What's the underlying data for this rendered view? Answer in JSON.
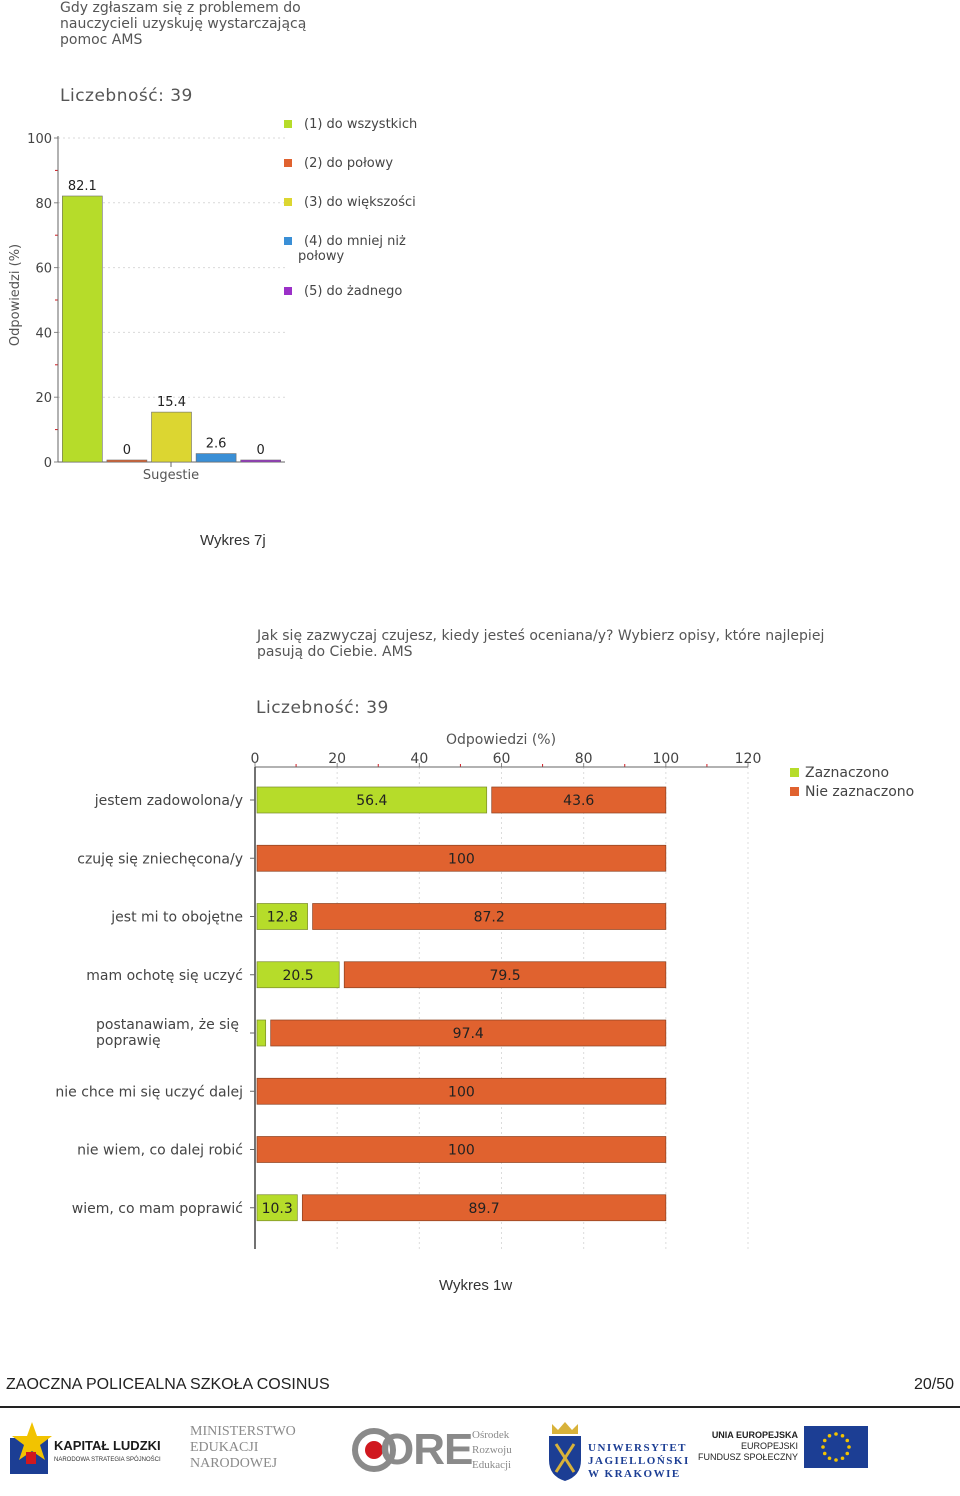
{
  "chart_data": [
    {
      "type": "bar",
      "title": "Gdy zgłaszam się z problemem do\nnauczycieli uzyskuję wystarczającą\npomoc AMS",
      "count_label": "Liczebność: 39",
      "xlabel": "Sugestie",
      "ylabel": "Odpowiedzi (%)",
      "ylim": [
        0,
        100
      ],
      "yticks": [
        "0",
        "20",
        "40",
        "60",
        "80",
        "100"
      ],
      "legend_position": "right",
      "series": [
        {
          "name": "(1) do wszystkich",
          "value": 82.1,
          "label": "82.1",
          "color": "#b6dc2a"
        },
        {
          "name": "(2) do połowy",
          "value": 0,
          "label": "0",
          "color": "#e0622f"
        },
        {
          "name": "(3) do większości",
          "value": 15.4,
          "label": "15.4",
          "color": "#dcd631"
        },
        {
          "name": "(4) do mniej niż połowy",
          "value": 2.6,
          "label": "2.6",
          "color": "#3a8fd6"
        },
        {
          "name": "(5) do żadnego",
          "value": 0,
          "label": "0",
          "color": "#9b30c8"
        }
      ],
      "caption": "Wykres 7j"
    },
    {
      "type": "bar",
      "orientation": "horizontal-stacked",
      "title": "Jak się zazwyczaj czujesz, kiedy jesteś oceniana/y? Wybierz opisy, które najlepiej\npasują do Ciebie. AMS",
      "count_label": "Liczebność: 39",
      "xlabel": "Odpowiedzi (%)",
      "xlim": [
        0,
        120
      ],
      "xticks": [
        "0",
        "20",
        "40",
        "60",
        "80",
        "100",
        "120"
      ],
      "legend_position": "top-right",
      "categories": [
        "jestem zadowolona/y",
        "czuję się zniechęcona/y",
        "jest mi to obojętne",
        "mam ochotę się uczyć",
        "postanawiam, że się\npoprawię",
        "nie chce mi się uczyć dalej",
        "nie wiem, co dalej robić",
        "wiem, co mam poprawić"
      ],
      "series": [
        {
          "name": "Zaznaczono",
          "color": "#b6dc2a",
          "values": [
            56.4,
            0,
            12.8,
            20.5,
            2.6,
            0,
            0,
            10.3
          ],
          "labels": [
            "56.4",
            "",
            "12.8",
            "20.5",
            "",
            "",
            "",
            "10.3"
          ]
        },
        {
          "name": "Nie zaznaczono",
          "color": "#e0622f",
          "values": [
            43.6,
            100,
            87.2,
            79.5,
            97.4,
            100,
            100,
            89.7
          ],
          "labels": [
            "43.6",
            "100",
            "87.2",
            "79.5",
            "97.4",
            "100",
            "100",
            "89.7"
          ]
        }
      ],
      "caption": "Wykres 1w"
    }
  ],
  "footer": {
    "school": "ZAOCZNA POLICEALNA SZKOŁA COSINUS",
    "page": "20/50"
  },
  "logos": {
    "kapital_main": "KAPITAŁ LUDZKI",
    "kapital_sub": "NARODOWA STRATEGIA SPÓJNOŚCI",
    "men_lines": [
      "MINISTERSTWO",
      "EDUKACJI",
      "NARODOWEJ"
    ],
    "ore_main": "ORE",
    "ore_lines": [
      "Ośrodek",
      "Rozwoju",
      "Edukacji"
    ],
    "uj_lines": [
      "UNIWERSYTET",
      "JAGIELLOŃSKI",
      "W KRAKOWIE"
    ],
    "eu_lines": [
      "UNIA EUROPEJSKA",
      "EUROPEJSKI",
      "FUNDUSZ SPOŁECZNY"
    ]
  }
}
